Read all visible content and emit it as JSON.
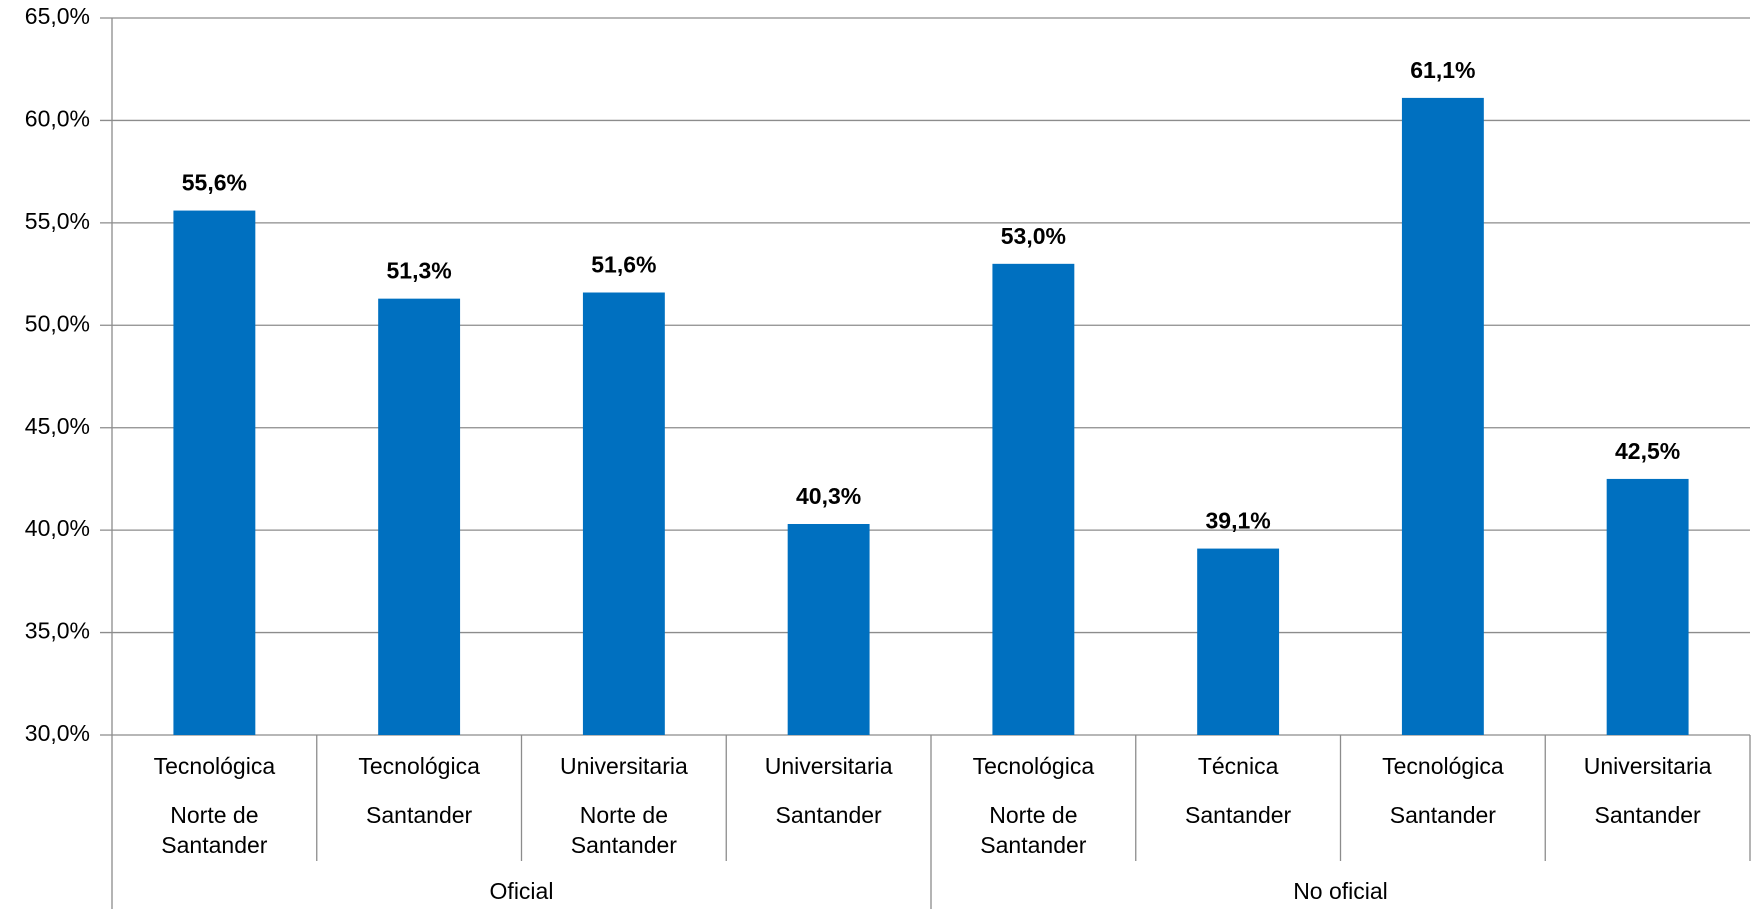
{
  "chart_data": {
    "type": "bar",
    "color": "#0070c0",
    "grid": true,
    "ylim": [
      30,
      65
    ],
    "yticks": [
      {
        "value": 30,
        "label": "30,0%"
      },
      {
        "value": 35,
        "label": "35,0%"
      },
      {
        "value": 40,
        "label": "40,0%"
      },
      {
        "value": 45,
        "label": "45,0%"
      },
      {
        "value": 50,
        "label": "50,0%"
      },
      {
        "value": 55,
        "label": "55,0%"
      },
      {
        "value": 60,
        "label": "60,0%"
      },
      {
        "value": 65,
        "label": "65,0%"
      }
    ],
    "groups": [
      {
        "name": "Oficial",
        "categories": [
          [
            "Tecnológica",
            "Norte de Santander"
          ],
          [
            "Tecnológica",
            "Santander"
          ],
          [
            "Universitaria",
            "Norte de Santander"
          ],
          [
            "Universitaria",
            "Santander"
          ]
        ],
        "values": [
          55.6,
          51.3,
          51.6,
          40.3
        ],
        "value_labels": [
          "55,6%",
          "51,3%",
          "51,6%",
          "40,3%"
        ]
      },
      {
        "name": "No oficial",
        "categories": [
          [
            "Tecnológica",
            "Norte de Santander"
          ],
          [
            "Técnica",
            "Santander"
          ],
          [
            "Tecnológica",
            "Santander"
          ],
          [
            "Universitaria",
            "Santander"
          ]
        ],
        "values": [
          53.0,
          39.1,
          61.1,
          42.5
        ],
        "value_labels": [
          "53,0%",
          "39,1%",
          "61,1%",
          "42,5%"
        ]
      }
    ]
  }
}
